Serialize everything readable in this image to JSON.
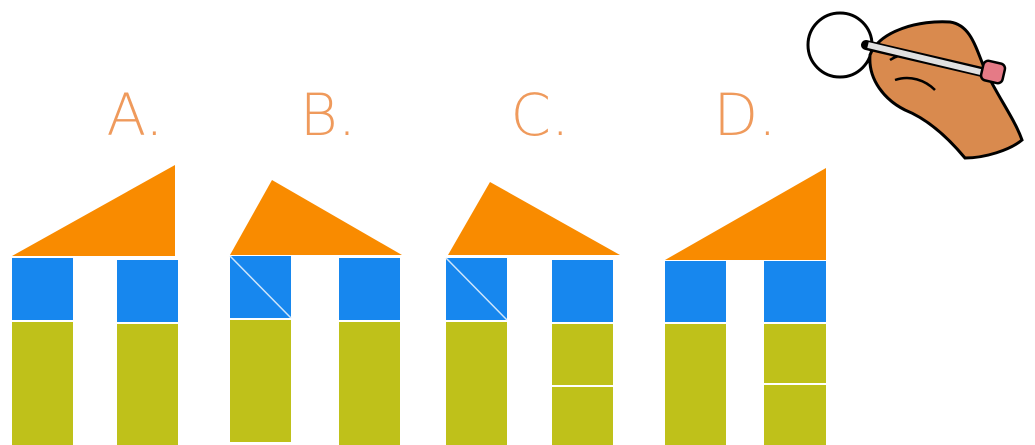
{
  "options": [
    {
      "label": "A."
    },
    {
      "label": "B."
    },
    {
      "label": "C."
    },
    {
      "label": "D."
    }
  ]
}
